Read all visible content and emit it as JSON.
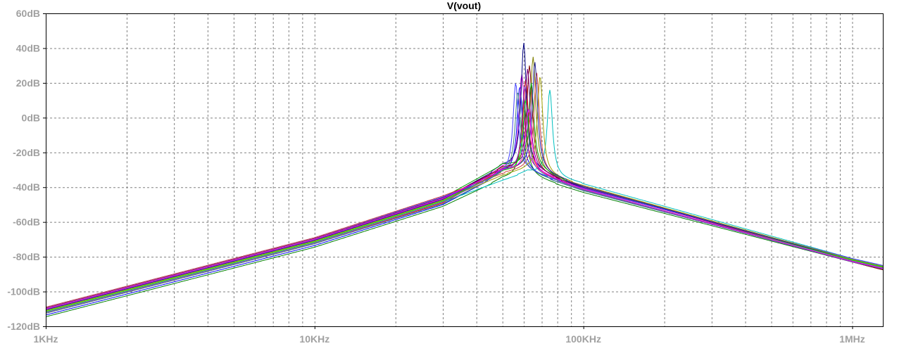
{
  "chart_data": {
    "type": "line",
    "title": "V(vout)",
    "xlabel": "",
    "ylabel": "",
    "x_scale": "log",
    "xlim": [
      1000,
      1300000
    ],
    "ylim": [
      -120,
      60
    ],
    "grid": true,
    "legend": "none",
    "x_ticks": [
      {
        "value": 1000,
        "label": "1KHz"
      },
      {
        "value": 10000,
        "label": "10KHz"
      },
      {
        "value": 100000,
        "label": "100KHz"
      },
      {
        "value": 1000000,
        "label": "1MHz"
      }
    ],
    "y_ticks": [
      {
        "value": 60,
        "label": "60dB"
      },
      {
        "value": 40,
        "label": "40dB"
      },
      {
        "value": 20,
        "label": "20dB"
      },
      {
        "value": 0,
        "label": "0dB"
      },
      {
        "value": -20,
        "label": "-20dB"
      },
      {
        "value": -40,
        "label": "-40dB"
      },
      {
        "value": -60,
        "label": "-60dB"
      },
      {
        "value": -80,
        "label": "-80dB"
      },
      {
        "value": -100,
        "label": "-100dB"
      },
      {
        "value": -120,
        "label": "-120dB"
      }
    ],
    "series_common": {
      "x": [
        1000,
        10000,
        30000,
        50000,
        62000,
        100000,
        1000000,
        1300000
      ]
    },
    "series": [
      {
        "color": "#008000",
        "peak_x": 60000,
        "values": [
          -114.5,
          -74.5,
          -51,
          -35,
          12,
          -43,
          -83,
          -87.5
        ]
      },
      {
        "color": "#0000ff",
        "peak_x": 58000,
        "values": [
          -113.5,
          -73.5,
          -50,
          -32,
          18,
          -42,
          -82.5,
          -86.5
        ]
      },
      {
        "color": "#ff0000",
        "peak_x": 61000,
        "values": [
          -112.5,
          -72.5,
          -49,
          -30,
          22,
          -41.5,
          -82,
          -86
        ]
      },
      {
        "color": "#00c0c0",
        "peak_x": 75000,
        "values": [
          -112,
          -72,
          -48.5,
          -36,
          16,
          -38,
          -81,
          -85
        ]
      },
      {
        "color": "#c000c0",
        "peak_x": 59000,
        "values": [
          -111.5,
          -71.5,
          -48,
          -29,
          25,
          -41,
          -82.5,
          -86.5
        ]
      },
      {
        "color": "#808000",
        "peak_x": 65000,
        "values": [
          -111,
          -71,
          -47.5,
          -31,
          35,
          -40,
          -82,
          -86
        ]
      },
      {
        "color": "#000080",
        "peak_x": 60000,
        "values": [
          -110.5,
          -70.5,
          -47,
          -28,
          43,
          -40.5,
          -81.5,
          -85.5
        ]
      },
      {
        "color": "#800000",
        "peak_x": 63000,
        "values": [
          -110,
          -70,
          -46.5,
          -29,
          30,
          -41,
          -83,
          -87.5
        ]
      },
      {
        "color": "#00a000",
        "peak_x": 64000,
        "values": [
          -110,
          -70,
          -46,
          -27,
          20,
          -40,
          -82,
          -86
        ]
      },
      {
        "color": "#800080",
        "peak_x": 62000,
        "values": [
          -109.5,
          -69.5,
          -46,
          -30,
          28,
          -40,
          -82.5,
          -87
        ]
      },
      {
        "color": "#4040ff",
        "peak_x": 56000,
        "values": [
          -109,
          -69,
          -45.5,
          -33,
          20,
          -40.5,
          -81,
          -85
        ]
      },
      {
        "color": "#d04040",
        "peak_x": 67000,
        "values": [
          -109,
          -69,
          -45,
          -32,
          26,
          -39,
          -82.5,
          -86.5
        ]
      },
      {
        "color": "#408080",
        "peak_x": 57000,
        "values": [
          -112.5,
          -72.5,
          -49.5,
          -32,
          15,
          -42,
          -82.5,
          -86.5
        ]
      },
      {
        "color": "#a0a000",
        "peak_x": 69000,
        "values": [
          -111,
          -71,
          -47.5,
          -33,
          24,
          -39,
          -81.5,
          -85.5
        ]
      },
      {
        "color": "#2020a0",
        "peak_x": 66000,
        "values": [
          -110.5,
          -70.5,
          -47,
          -30,
          32,
          -39.5,
          -82,
          -86
        ]
      },
      {
        "color": "#00ff00",
        "peak_x": 61000,
        "values": [
          -111.5,
          -71.5,
          -48,
          -31,
          10,
          -41.5,
          -82,
          -86
        ]
      },
      {
        "color": "#ff00ff",
        "peak_x": 62500,
        "values": [
          -110,
          -70,
          -46.5,
          -30,
          5,
          -41,
          -82.5,
          -86.5
        ]
      },
      {
        "color": "#8040c0",
        "peak_x": 60500,
        "values": [
          -112,
          -72,
          -48.5,
          -31,
          18,
          -41.5,
          -83,
          -87
        ]
      }
    ]
  }
}
